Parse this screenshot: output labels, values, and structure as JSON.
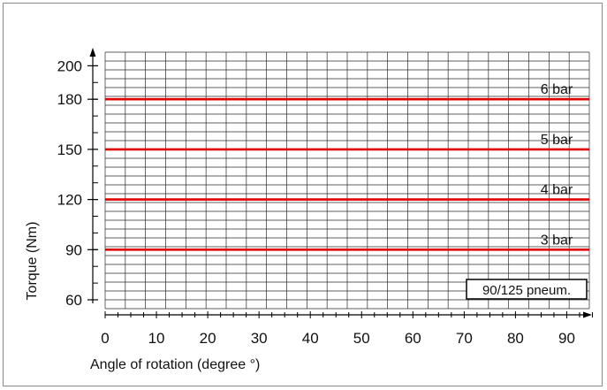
{
  "chart_data": {
    "type": "line",
    "title": "",
    "xlabel": "Angle of rotation (degree °)",
    "ylabel": "Torque (Nm)",
    "xlim": [
      0,
      95
    ],
    "ylim": [
      60,
      200
    ],
    "x_ticks": [
      0,
      10,
      20,
      30,
      40,
      50,
      60,
      70,
      80,
      90
    ],
    "y_ticks": [
      60,
      90,
      120,
      150,
      180,
      200
    ],
    "grid": true,
    "line_color": "#e00000",
    "series": [
      {
        "name": "3 bar",
        "x": [
          0,
          95
        ],
        "y": [
          90,
          90
        ]
      },
      {
        "name": "4 bar",
        "x": [
          0,
          95
        ],
        "y": [
          120,
          120
        ]
      },
      {
        "name": "5 bar",
        "x": [
          0,
          95
        ],
        "y": [
          150,
          150
        ]
      },
      {
        "name": "6 bar",
        "x": [
          0,
          95
        ],
        "y": [
          180,
          180
        ]
      }
    ],
    "annotation": "90/125 pneum."
  }
}
